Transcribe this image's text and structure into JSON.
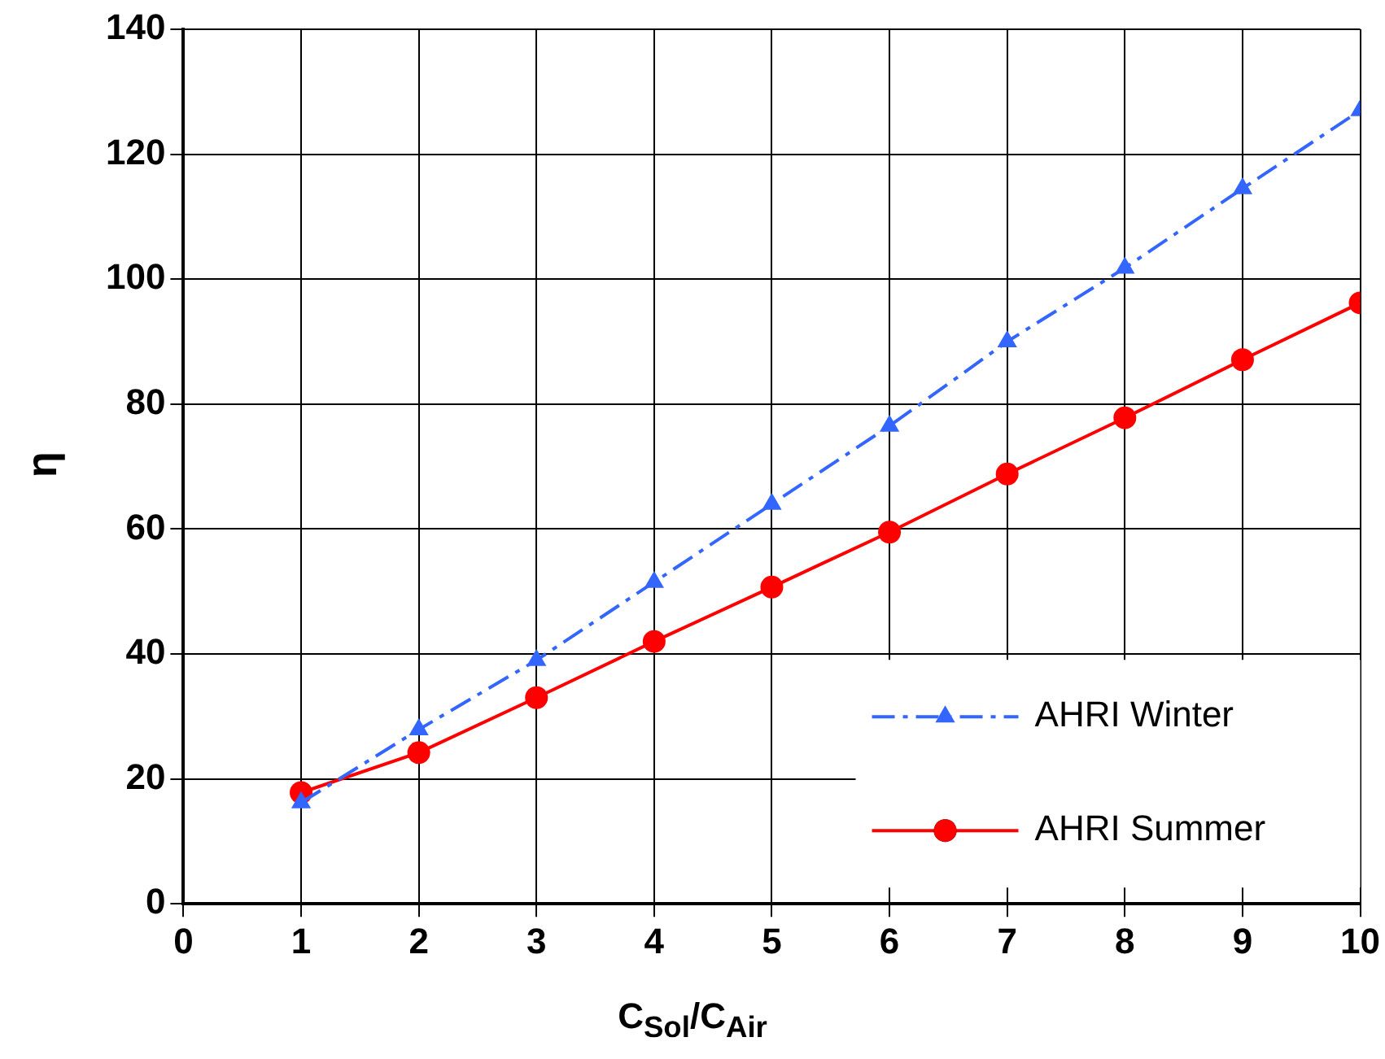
{
  "chart_data": {
    "type": "line",
    "xlabel": "C$_{Sol}$/C$_{Air}$",
    "ylabel": "η",
    "x": [
      1,
      2,
      3,
      4,
      5,
      6,
      7,
      8,
      9,
      10
    ],
    "xlim": [
      0,
      10
    ],
    "xticks": [
      0,
      1,
      2,
      3,
      4,
      5,
      6,
      7,
      8,
      9,
      10
    ],
    "ylim": [
      0,
      140
    ],
    "yticks": [
      0,
      20,
      40,
      60,
      80,
      100,
      120,
      140
    ],
    "grid": true,
    "legend": "bottom right",
    "series": [
      {
        "name": "AHRI Winter",
        "color": "#3366ff",
        "marker": "triangle",
        "line_style": "dashed",
        "values": [
          16.2,
          27.9,
          39,
          51.5,
          64,
          76.5,
          90,
          101.8,
          114.5,
          127
        ]
      },
      {
        "name": "AHRI Summer",
        "color": "#ff0000",
        "marker": "circle",
        "line_style": "solid",
        "values": [
          17.8,
          24.2,
          33,
          42,
          50.7,
          59.5,
          68.8,
          77.8,
          87.1,
          96.2
        ]
      }
    ]
  }
}
